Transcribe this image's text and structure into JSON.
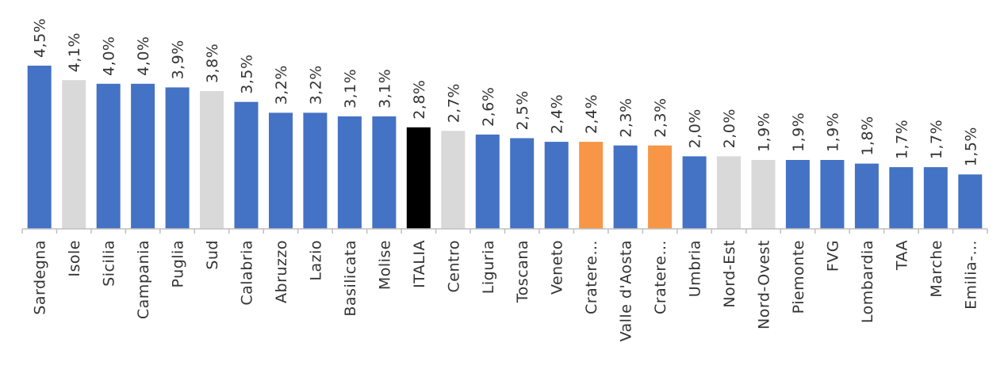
{
  "chart_data": {
    "type": "bar",
    "title": "",
    "xlabel": "",
    "ylabel": "",
    "ylim": [
      0,
      4.5
    ],
    "grid": false,
    "legend": "none",
    "categories": [
      "Sardegna",
      "Isole",
      "Sicilia",
      "Campania",
      "Puglia",
      "Sud",
      "Calabria",
      "Abruzzo",
      "Lazio",
      "Basilicata",
      "Molise",
      "ITALIA",
      "Centro",
      "Liguria",
      "Toscana",
      "Veneto",
      "Cratere…",
      "Valle d'Aosta",
      "Cratere…",
      "Umbria",
      "Nord-Est",
      "Nord-Ovest",
      "Piemonte",
      "FVG",
      "Lombardia",
      "TAA",
      "Marche",
      "Emilia-…"
    ],
    "values": [
      4.5,
      4.1,
      4.0,
      4.0,
      3.9,
      3.8,
      3.5,
      3.2,
      3.2,
      3.1,
      3.1,
      2.8,
      2.7,
      2.6,
      2.5,
      2.4,
      2.4,
      2.3,
      2.3,
      2.0,
      2.0,
      1.9,
      1.9,
      1.9,
      1.8,
      1.7,
      1.7,
      1.5
    ],
    "value_labels": [
      "4,5%",
      "4,1%",
      "4,0%",
      "4,0%",
      "3,9%",
      "3,8%",
      "3,5%",
      "3,2%",
      "3,2%",
      "3,1%",
      "3,1%",
      "2,8%",
      "2,7%",
      "2,6%",
      "2,5%",
      "2,4%",
      "2,4%",
      "2,3%",
      "2,3%",
      "2,0%",
      "2,0%",
      "1,9%",
      "1,9%",
      "1,9%",
      "1,8%",
      "1,7%",
      "1,7%",
      "1,5%"
    ],
    "colors": [
      "#4472C4",
      "#D9D9D9",
      "#4472C4",
      "#4472C4",
      "#4472C4",
      "#D9D9D9",
      "#4472C4",
      "#4472C4",
      "#4472C4",
      "#4472C4",
      "#4472C4",
      "#000000",
      "#D9D9D9",
      "#4472C4",
      "#4472C4",
      "#4472C4",
      "#F79646",
      "#4472C4",
      "#F79646",
      "#4472C4",
      "#D9D9D9",
      "#D9D9D9",
      "#4472C4",
      "#4472C4",
      "#4472C4",
      "#4472C4",
      "#4472C4",
      "#4472C4"
    ]
  }
}
